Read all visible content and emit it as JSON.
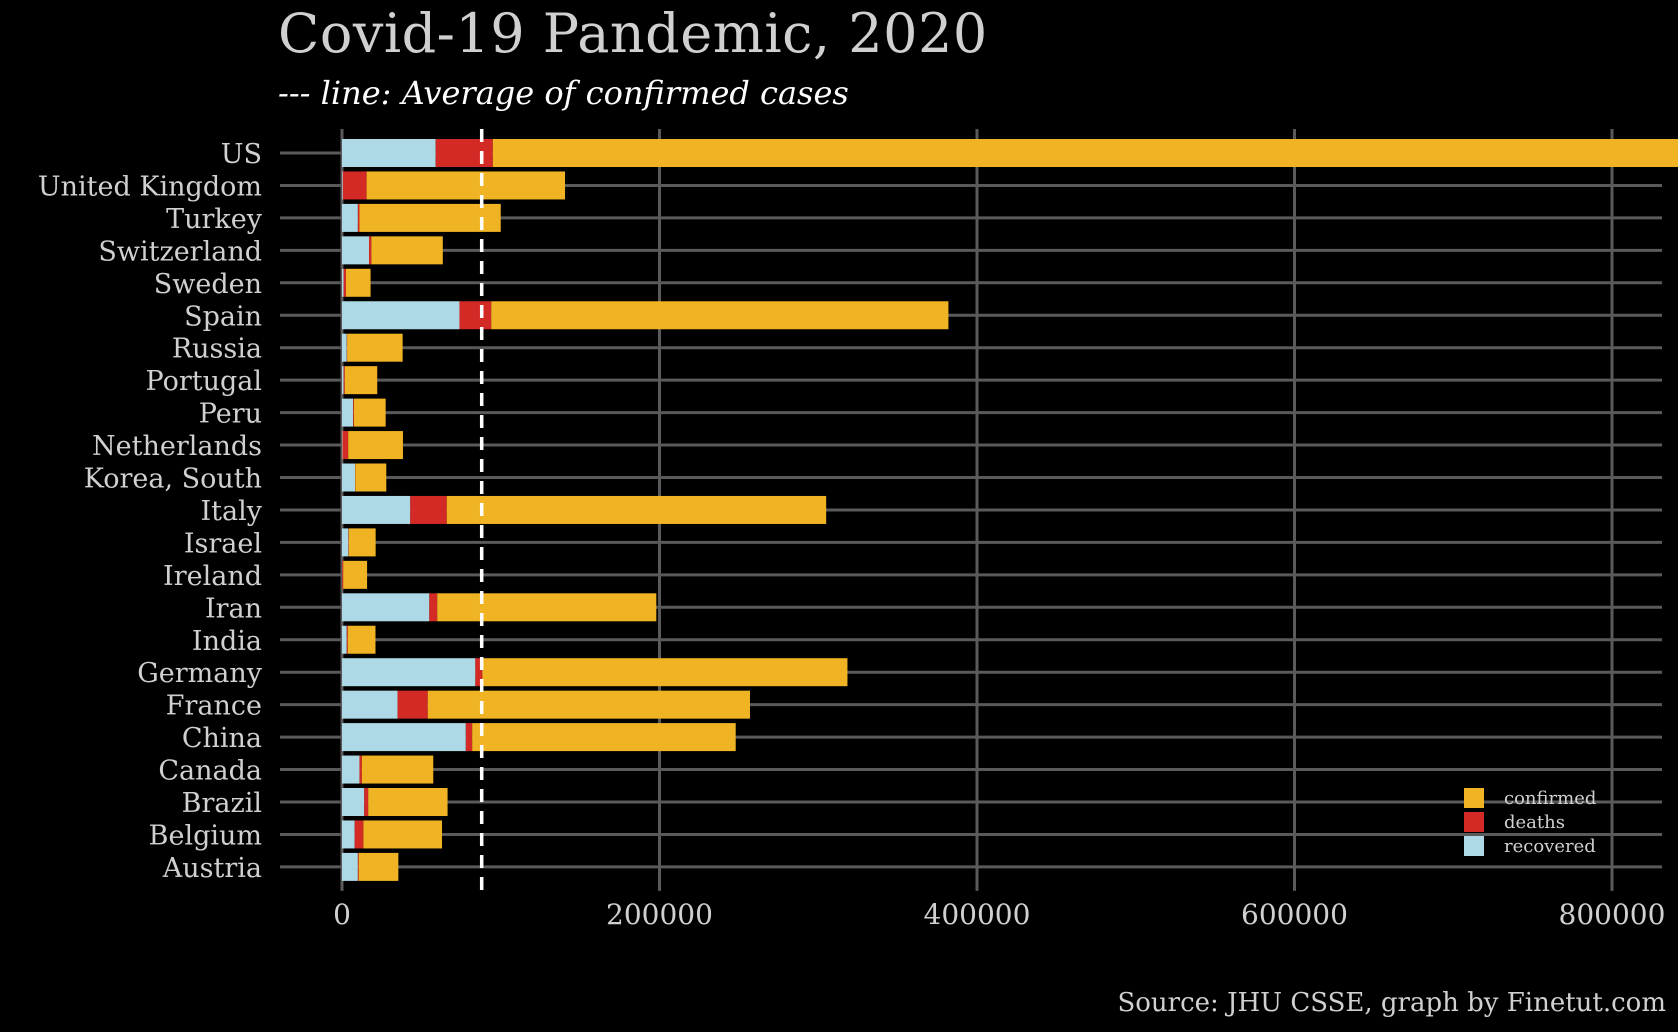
{
  "title": "Covid-19 Pandemic, 2020",
  "subtitle": "--- line: Average of confirmed cases",
  "source": "Source: JHU CSSE, graph by Finetut.com",
  "colors": {
    "background": "#000000",
    "grid": "#5a5a5a",
    "confirmed": "#f0b323",
    "deaths": "#d42a26",
    "recovered": "#add8e6",
    "average_line": "#ffffff",
    "text": "#d0d0d0"
  },
  "chart_data": {
    "type": "bar",
    "orientation": "horizontal",
    "stacked": true,
    "categories": [
      "US",
      "United Kingdom",
      "Turkey",
      "Switzerland",
      "Sweden",
      "Spain",
      "Russia",
      "Portugal",
      "Peru",
      "Netherlands",
      "Korea, South",
      "Italy",
      "Israel",
      "Ireland",
      "Iran",
      "India",
      "Germany",
      "France",
      "China",
      "Canada",
      "Brazil",
      "Belgium",
      "Austria"
    ],
    "series": [
      {
        "name": "recovered",
        "values": [
          59000,
          500,
          10000,
          17000,
          1000,
          74000,
          3000,
          1000,
          7000,
          300,
          8200,
          43000,
          4000,
          100,
          55000,
          3000,
          84000,
          35000,
          78000,
          11000,
          14000,
          8000,
          10000
        ]
      },
      {
        "name": "deaths",
        "values": [
          36000,
          15000,
          1000,
          1500,
          1500,
          20000,
          200,
          700,
          500,
          3600,
          200,
          23000,
          200,
          700,
          5000,
          600,
          4400,
          19000,
          4000,
          1500,
          2500,
          5500,
          500
        ]
      },
      {
        "name": "confirmed",
        "values": [
          795000,
          125000,
          89000,
          45000,
          15500,
          288000,
          35000,
          20500,
          20000,
          34500,
          19500,
          239000,
          17000,
          15000,
          138000,
          17500,
          230000,
          203000,
          166000,
          45000,
          50000,
          49500,
          25000
        ]
      }
    ],
    "average_confirmed": 88000,
    "xlim": [
      0,
      800000
    ],
    "xticks": [
      0,
      200000,
      400000,
      600000,
      800000
    ],
    "xtick_labels": [
      "0",
      "200000",
      "400000",
      "600000",
      "800000"
    ],
    "grid": true,
    "legend": {
      "placement": "bottom-right",
      "entries": [
        "confirmed",
        "deaths",
        "recovered"
      ]
    }
  }
}
